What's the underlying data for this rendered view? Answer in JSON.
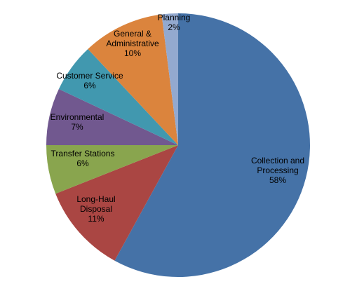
{
  "chart_data": {
    "type": "pie",
    "title": "",
    "legend": "none",
    "slices": [
      {
        "name": "Collection and Processing",
        "label_lines": [
          "Collection and",
          "Processing"
        ],
        "value": 58,
        "value_label": "58%",
        "color": "#4572A7"
      },
      {
        "name": "Long-Haul Disposal",
        "label_lines": [
          "Long-Haul",
          "Disposal"
        ],
        "value": 11,
        "value_label": "11%",
        "color": "#AA4643"
      },
      {
        "name": "Transfer Stations",
        "label_lines": [
          "Transfer Stations"
        ],
        "value": 6,
        "value_label": "6%",
        "color": "#89A54E"
      },
      {
        "name": "Environmental",
        "label_lines": [
          "Environmental"
        ],
        "value": 7,
        "value_label": "7%",
        "color": "#71588F"
      },
      {
        "name": "Customer Service",
        "label_lines": [
          "Customer Service"
        ],
        "value": 6,
        "value_label": "6%",
        "color": "#4198AF"
      },
      {
        "name": "General & Administrative",
        "label_lines": [
          "General &",
          "Administrative"
        ],
        "value": 10,
        "value_label": "10%",
        "color": "#DB843D"
      },
      {
        "name": "Planning",
        "label_lines": [
          "Planning"
        ],
        "value": 2,
        "value_label": "2%",
        "color": "#93A9CF"
      }
    ]
  }
}
